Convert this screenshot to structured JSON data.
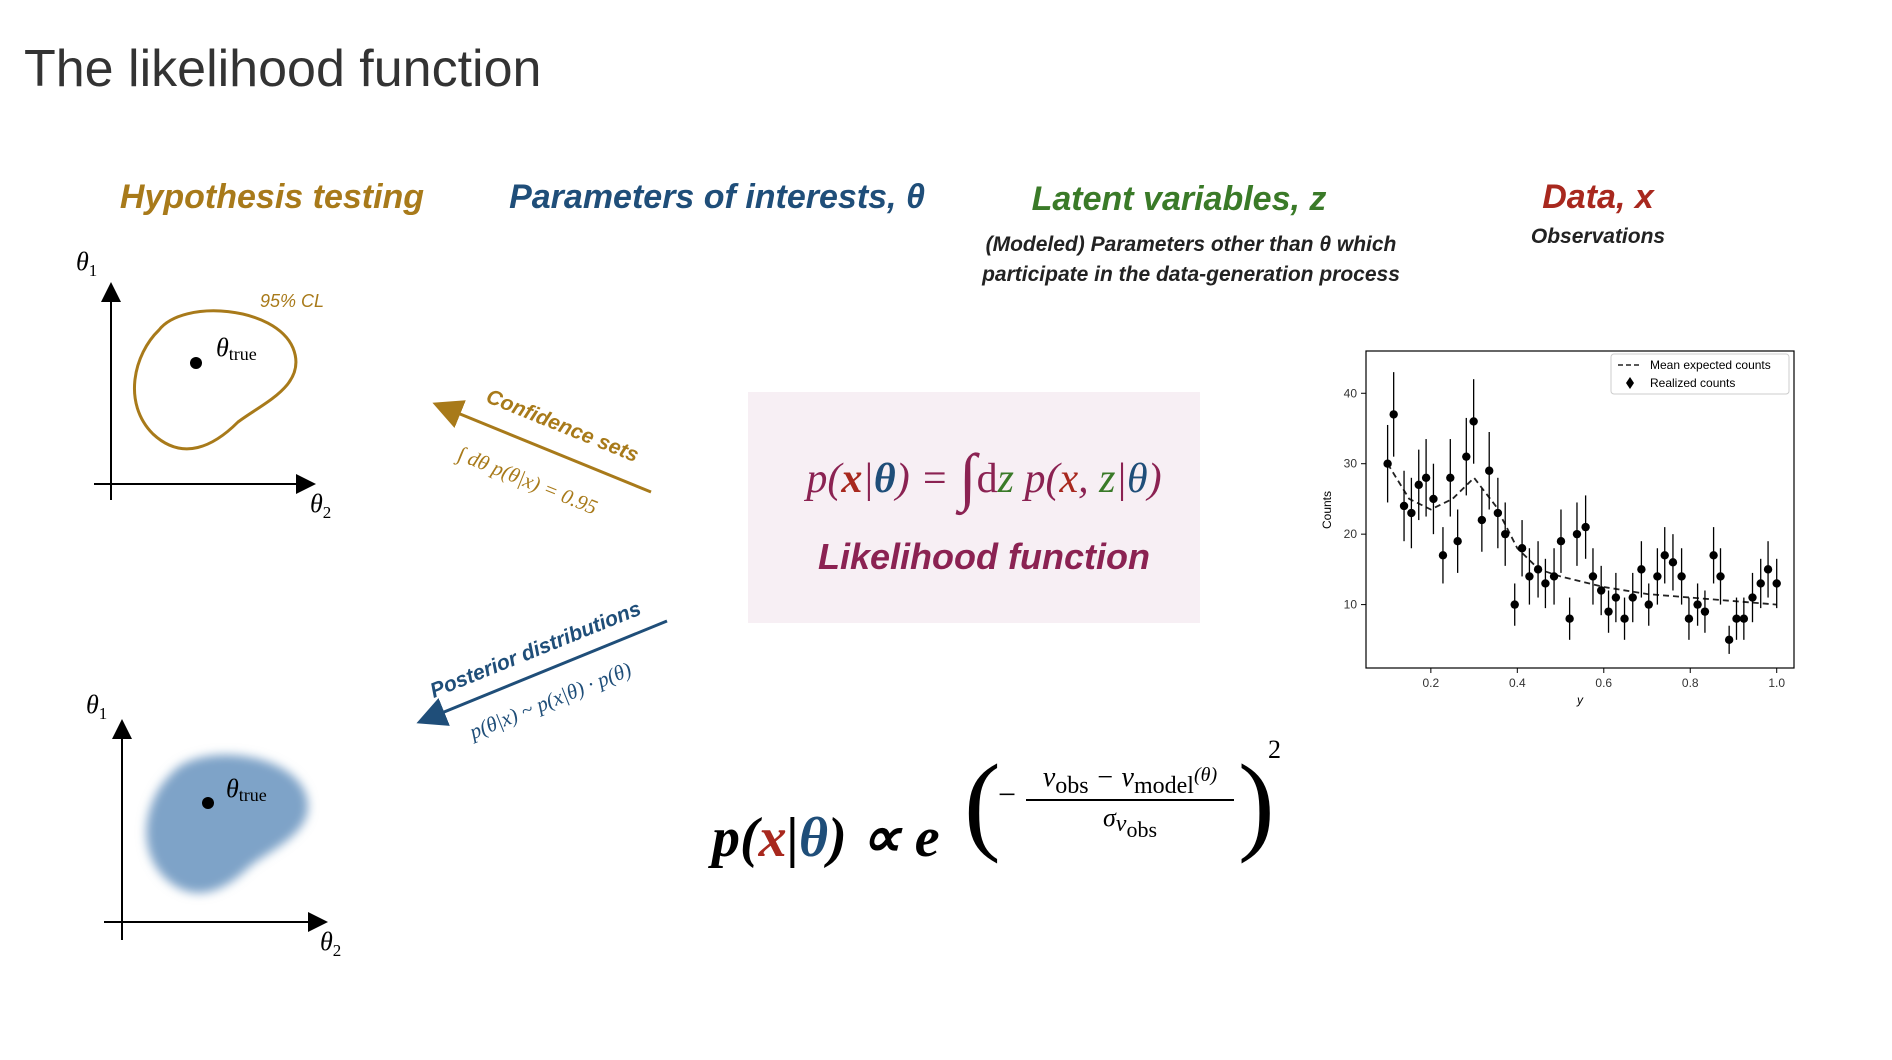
{
  "header": {
    "title": "The likelihood function"
  },
  "columns": {
    "hypothesis": {
      "title": "Hypothesis testing"
    },
    "parameters": {
      "title": "Parameters of interests, θ"
    },
    "latent": {
      "title": "Latent variables, z",
      "description": [
        "(Modeled) Parameters other than θ which",
        "participate in the data-generation process"
      ]
    },
    "data": {
      "title": "Data, x",
      "description": "Observations"
    }
  },
  "diagrams": {
    "top": {
      "y_axis": [
        "θ",
        "1"
      ],
      "x_axis": [
        "θ",
        "2"
      ],
      "point": [
        "θ",
        "true"
      ],
      "region": "95% CL"
    },
    "bottom": {
      "y_axis": [
        "θ",
        "1"
      ],
      "x_axis": [
        "θ",
        "2"
      ],
      "point": [
        "θ",
        "true"
      ]
    }
  },
  "arrows": {
    "confidence": {
      "label": "Confidence sets",
      "formula": "∫ dθ p(θ|x) = 0.95"
    },
    "posterior": {
      "label": "Posterior distributions",
      "formula": "p(θ|x) ~ p(x|θ) · p(θ)"
    }
  },
  "likelihood_box": {
    "formula": [
      "p(",
      "x",
      "|",
      "θ",
      ") = ",
      "∫",
      "d",
      "z",
      " p(",
      "x",
      ", ",
      "z",
      "|",
      "θ",
      ")"
    ],
    "caption": "Likelihood function"
  },
  "formula_prop": {
    "lhs": [
      "p(",
      "x",
      "|",
      "θ",
      ") ∝ e"
    ],
    "open": "(",
    "minus": "−",
    "numerator": [
      "v",
      "obs",
      " − v",
      "model",
      "(θ)"
    ],
    "denominator": [
      "σ",
      "v",
      "obs"
    ],
    "close": ")",
    "power": "2"
  },
  "plot": {
    "x_label": "y",
    "y_label": "Counts",
    "xlim": [
      0.05,
      1.04
    ],
    "ylim": [
      1,
      46
    ],
    "xticks": [
      0.2,
      0.4,
      0.6,
      0.8,
      {
        "value": 1,
        "label": "1.0"
      }
    ],
    "yticks": [
      10,
      20,
      30,
      40
    ],
    "curve": {
      "name": "Mean expected counts",
      "color": "#222",
      "x": [
        0.1,
        0.15,
        0.2,
        0.25,
        0.3,
        0.35,
        0.4,
        0.45,
        0.5,
        0.6,
        0.7,
        0.8,
        0.9,
        1.0
      ],
      "values": [
        30,
        25,
        23.5,
        25,
        28,
        24,
        18,
        15,
        14,
        12.5,
        11.5,
        11,
        10.5,
        10
      ]
    },
    "points": {
      "name": "Realized counts",
      "color": "#000",
      "x": [
        0.1,
        0.114,
        0.138,
        0.155,
        0.172,
        0.189,
        0.206,
        0.228,
        0.245,
        0.262,
        0.282,
        0.299,
        0.318,
        0.335,
        0.355,
        0.372,
        0.394,
        0.411,
        0.428,
        0.448,
        0.465,
        0.485,
        0.501,
        0.521,
        0.538,
        0.558,
        0.575,
        0.594,
        0.611,
        0.628,
        0.648,
        0.667,
        0.687,
        0.704,
        0.724,
        0.741,
        0.76,
        0.78,
        0.797,
        0.817,
        0.834,
        0.854,
        0.87,
        0.89,
        0.907,
        0.924,
        0.944,
        0.963,
        0.98,
        1.0
      ],
      "values": [
        30,
        37,
        24,
        23,
        27,
        28,
        25,
        17,
        28,
        19,
        31,
        36,
        22,
        29,
        23,
        20,
        10,
        18,
        14,
        15,
        13,
        14,
        19,
        8,
        20,
        21,
        14,
        12,
        9,
        11,
        8,
        11,
        15,
        10,
        14,
        17,
        16,
        14,
        8,
        10,
        9,
        17,
        14,
        5,
        8,
        8,
        11,
        13,
        15,
        13
      ],
      "errors": [
        5.5,
        6,
        5,
        5,
        5,
        5.5,
        5,
        4,
        5.5,
        4.5,
        5.5,
        6,
        4.5,
        5.5,
        5,
        4.5,
        3,
        4,
        4,
        4,
        3.5,
        4,
        4.5,
        3,
        4.5,
        4.5,
        4,
        3.5,
        3,
        3.5,
        3,
        3.5,
        4,
        3,
        4,
        4,
        4,
        4,
        3,
        3,
        3,
        4,
        4,
        2,
        3,
        3,
        3.5,
        3.5,
        4,
        3.5
      ]
    }
  }
}
